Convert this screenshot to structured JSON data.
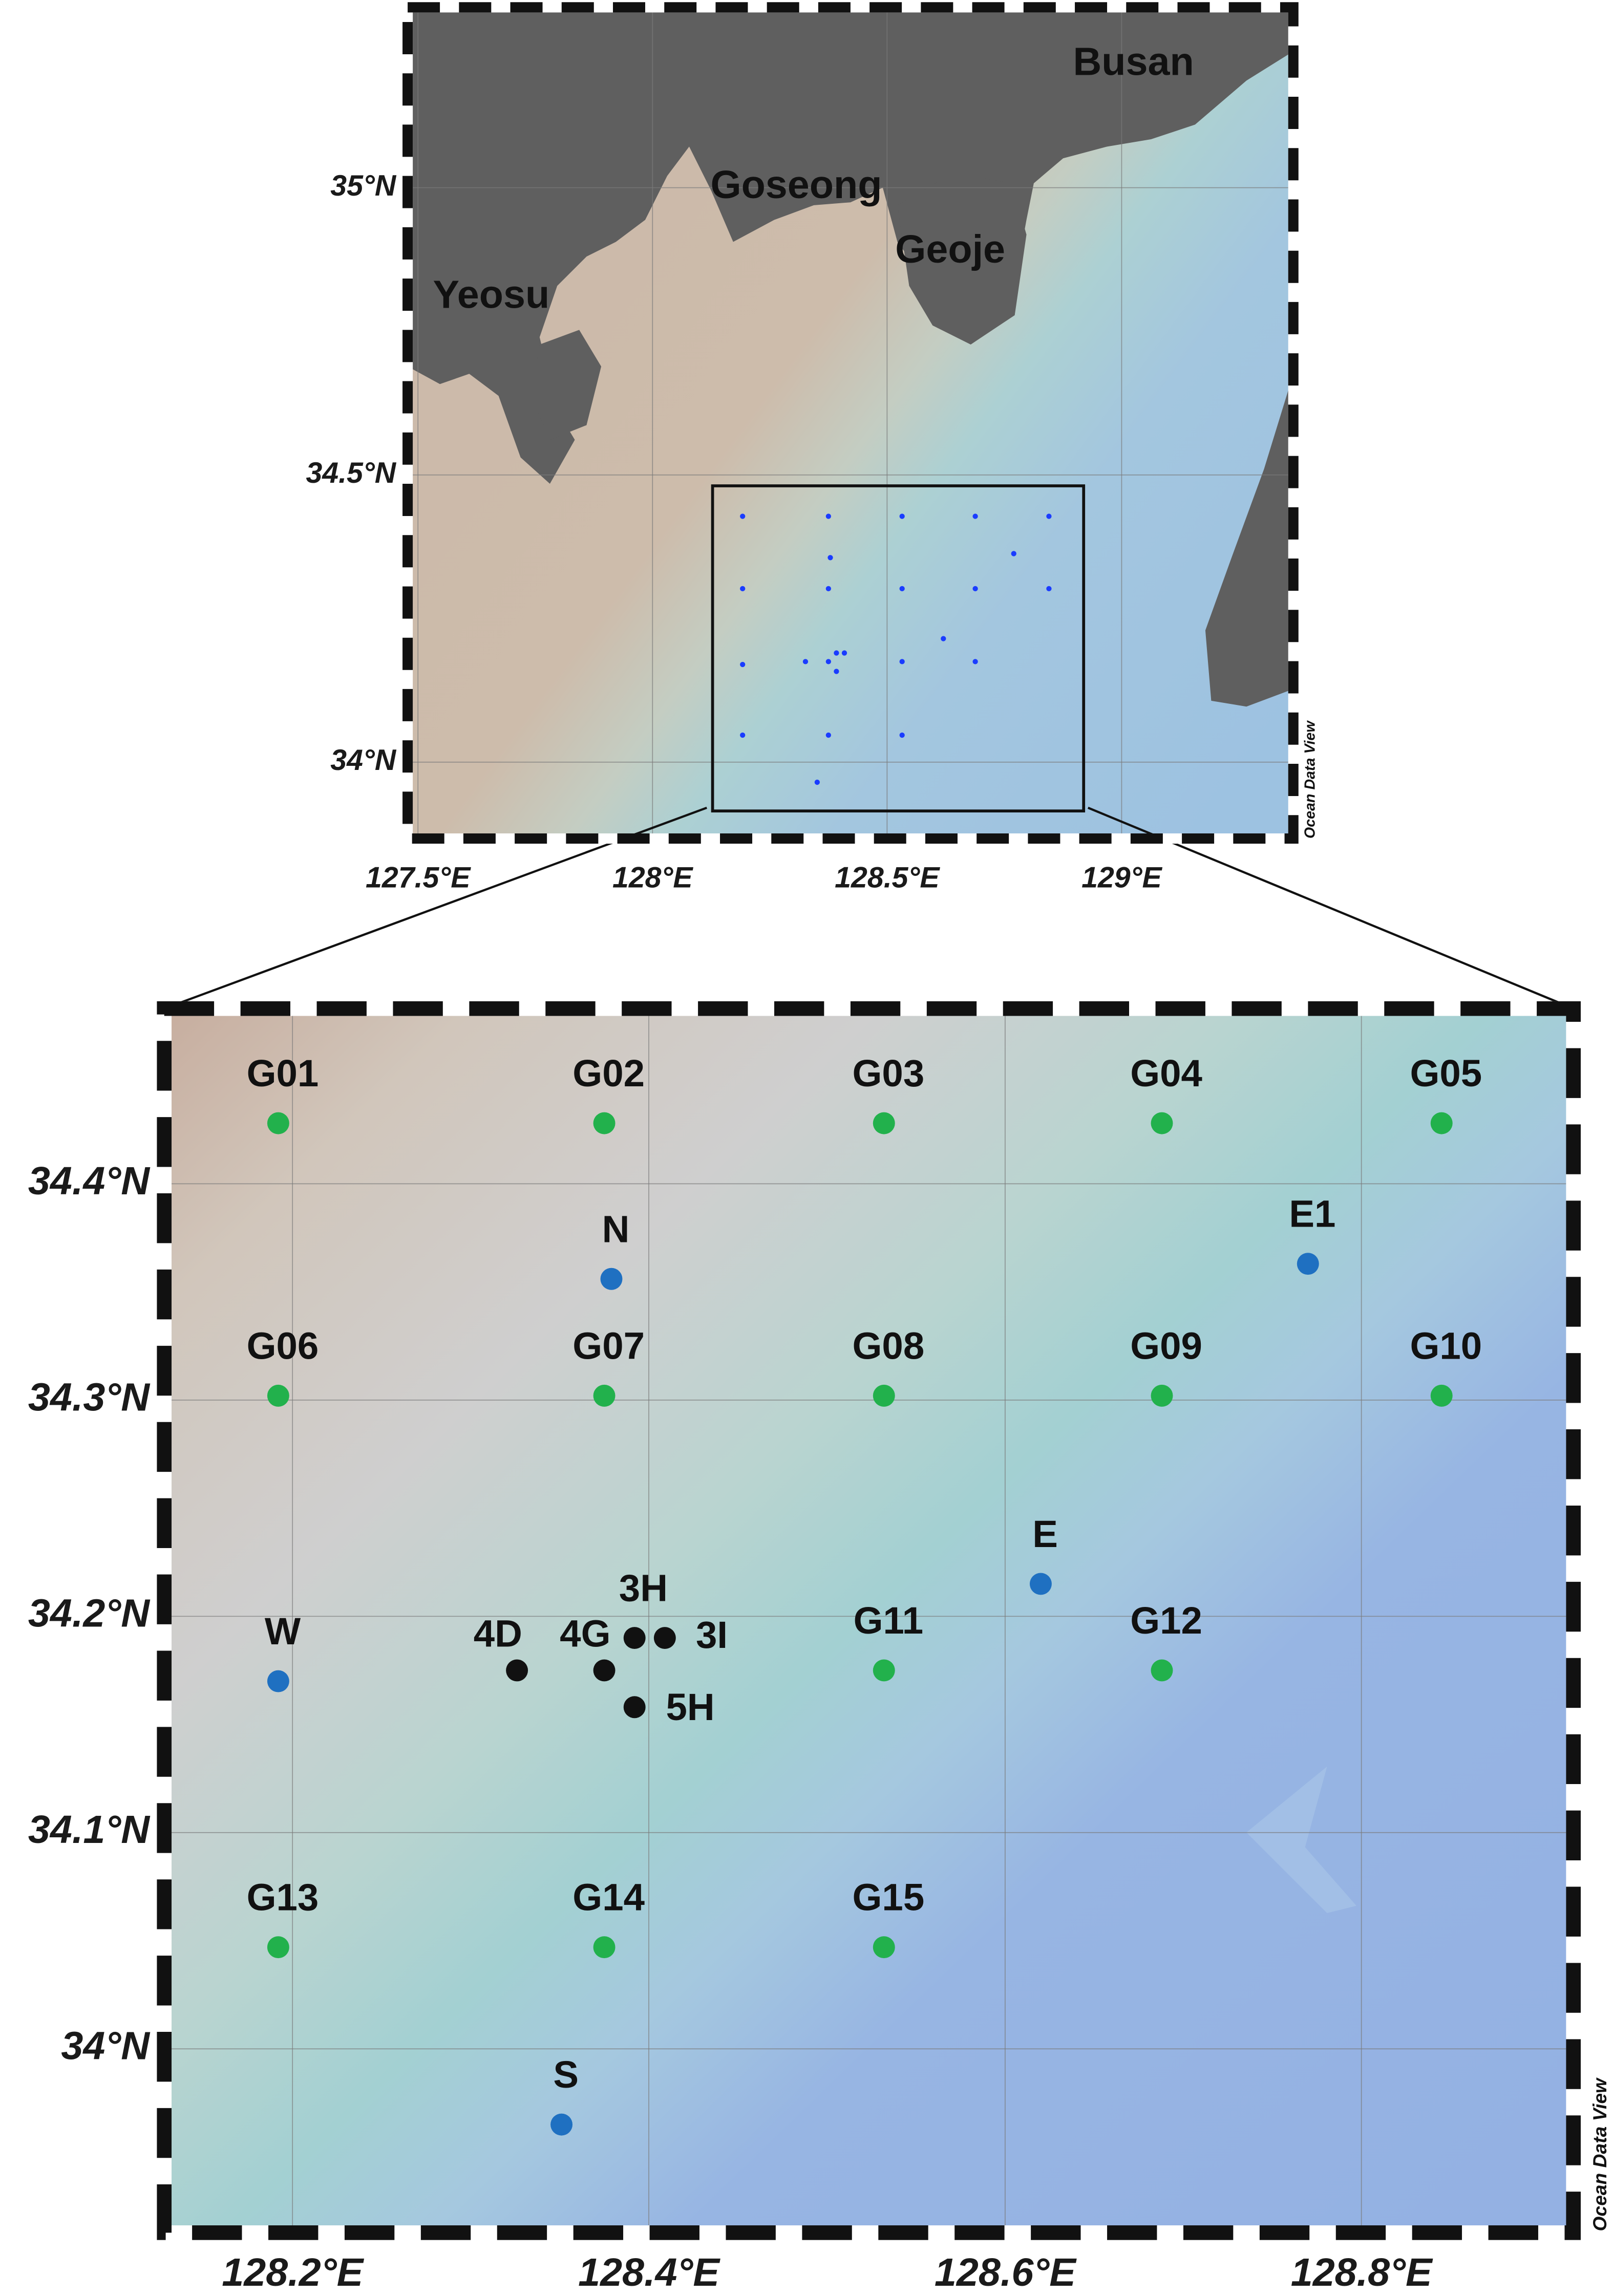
{
  "overview_map": {
    "place_names": [
      "Busan",
      "Goseong",
      "Geoje",
      "Yeosu"
    ],
    "xlim": [
      127.478,
      129.366
    ],
    "ylim": [
      33.867,
      35.314
    ],
    "xticks": [
      {
        "value": 127.5,
        "label": "127.5°E"
      },
      {
        "value": 128,
        "label": "128°E"
      },
      {
        "value": 128.5,
        "label": "128.5°E"
      },
      {
        "value": 129,
        "label": "129°E"
      }
    ],
    "yticks": [
      {
        "value": 34,
        "label": "34°N"
      },
      {
        "value": 34.5,
        "label": "34.5°N"
      },
      {
        "value": 35,
        "label": "35°N"
      }
    ],
    "credit": "Ocean Data View"
  },
  "detail_map": {
    "xlim": [
      128.128,
      128.919
    ],
    "ylim": [
      33.915,
      34.481
    ],
    "xticks": [
      {
        "value": 128.2,
        "label": "128.2°E"
      },
      {
        "value": 128.4,
        "label": "128.4°E"
      },
      {
        "value": 128.6,
        "label": "128.6°E"
      },
      {
        "value": 128.8,
        "label": "128.8°E"
      }
    ],
    "yticks": [
      {
        "value": 34,
        "label": "34°N"
      },
      {
        "value": 34.1,
        "label": "34.1°N"
      },
      {
        "value": 34.2,
        "label": "34.2°N"
      },
      {
        "value": 34.3,
        "label": "34.3°N"
      },
      {
        "value": 34.4,
        "label": "34.4°N"
      }
    ],
    "credit": "Ocean Data View",
    "stations": [
      {
        "name": "G01",
        "lon": 128.192,
        "lat": 34.428,
        "color": "#22b14c"
      },
      {
        "name": "G02",
        "lon": 128.375,
        "lat": 34.428,
        "color": "#22b14c"
      },
      {
        "name": "G03",
        "lon": 128.532,
        "lat": 34.428,
        "color": "#22b14c"
      },
      {
        "name": "G04",
        "lon": 128.688,
        "lat": 34.428,
        "color": "#22b14c"
      },
      {
        "name": "G05",
        "lon": 128.845,
        "lat": 34.428,
        "color": "#22b14c"
      },
      {
        "name": "N",
        "lon": 128.379,
        "lat": 34.356,
        "color": "#1f70c1"
      },
      {
        "name": "E1",
        "lon": 128.77,
        "lat": 34.363,
        "color": "#1f70c1"
      },
      {
        "name": "G06",
        "lon": 128.192,
        "lat": 34.302,
        "color": "#22b14c"
      },
      {
        "name": "G07",
        "lon": 128.375,
        "lat": 34.302,
        "color": "#22b14c"
      },
      {
        "name": "G08",
        "lon": 128.532,
        "lat": 34.302,
        "color": "#22b14c"
      },
      {
        "name": "G09",
        "lon": 128.688,
        "lat": 34.302,
        "color": "#22b14c"
      },
      {
        "name": "G10",
        "lon": 128.845,
        "lat": 34.302,
        "color": "#22b14c"
      },
      {
        "name": "E",
        "lon": 128.62,
        "lat": 34.215,
        "color": "#1f70c1"
      },
      {
        "name": "W",
        "lon": 128.192,
        "lat": 34.17,
        "color": "#1f70c1"
      },
      {
        "name": "4D",
        "lon": 128.326,
        "lat": 34.175,
        "color": "#111111"
      },
      {
        "name": "4G",
        "lon": 128.375,
        "lat": 34.175,
        "color": "#111111"
      },
      {
        "name": "3H",
        "lon": 128.392,
        "lat": 34.19,
        "color": "#111111"
      },
      {
        "name": "3I",
        "lon": 128.409,
        "lat": 34.19,
        "color": "#111111"
      },
      {
        "name": "5H",
        "lon": 128.392,
        "lat": 34.158,
        "color": "#111111"
      },
      {
        "name": "G11",
        "lon": 128.532,
        "lat": 34.175,
        "color": "#22b14c"
      },
      {
        "name": "G12",
        "lon": 128.688,
        "lat": 34.175,
        "color": "#22b14c"
      },
      {
        "name": "G13",
        "lon": 128.192,
        "lat": 34.047,
        "color": "#22b14c"
      },
      {
        "name": "G14",
        "lon": 128.375,
        "lat": 34.047,
        "color": "#22b14c"
      },
      {
        "name": "G15",
        "lon": 128.532,
        "lat": 34.047,
        "color": "#22b14c"
      },
      {
        "name": "S",
        "lon": 128.351,
        "lat": 33.965,
        "color": "#1f70c1"
      }
    ]
  }
}
